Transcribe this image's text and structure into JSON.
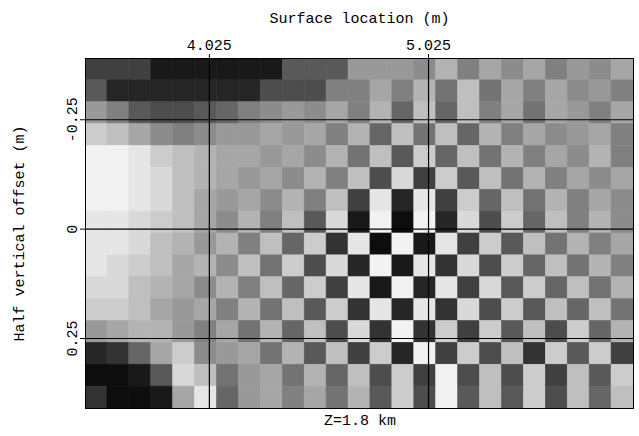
{
  "chart_data": {
    "type": "heatmap",
    "caption": "Z=1.8 km",
    "x_label": "Surface location (m)",
    "y_label": "Half vertical offset (m)",
    "xlim": [
      3.46,
      5.96
    ],
    "ylim": [
      -0.39,
      0.41
    ],
    "xticks": [
      4.025,
      5.025
    ],
    "yticks": [
      -0.25,
      0,
      0.25
    ],
    "grid": true,
    "zlim": [
      -1,
      1
    ],
    "x_bins": [
      3.46,
      3.56,
      3.66,
      3.76,
      3.86,
      3.96,
      4.06,
      4.16,
      4.26,
      4.36,
      4.46,
      4.56,
      4.66,
      4.76,
      4.86,
      4.96,
      5.06,
      5.16,
      5.26,
      5.36,
      5.46,
      5.56,
      5.66,
      5.76,
      5.86,
      5.96
    ],
    "y_bins": [
      -0.39,
      -0.34,
      -0.29,
      -0.24,
      -0.19,
      -0.14,
      -0.09,
      -0.04,
      0.01,
      0.06,
      0.11,
      0.16,
      0.21,
      0.26,
      0.31,
      0.36,
      0.41
    ],
    "cells": [
      [
        -0.5,
        -0.5,
        -0.5,
        -0.8,
        -0.8,
        -0.8,
        -0.8,
        -0.8,
        -0.8,
        -0.3,
        -0.3,
        -0.3,
        0.2,
        0.2,
        0.2,
        0.1,
        0.4,
        0.0,
        0.3,
        0.1,
        0.3,
        0.0,
        0.2,
        0.1,
        0.3
      ],
      [
        -0.3,
        -0.7,
        -0.7,
        -0.7,
        -0.7,
        -0.7,
        -0.7,
        -0.7,
        -0.4,
        -0.4,
        -0.4,
        0.0,
        0.0,
        0.3,
        0.0,
        0.4,
        -0.1,
        0.5,
        -0.1,
        0.3,
        0.0,
        0.3,
        0.1,
        0.2,
        0.0
      ],
      [
        0.2,
        0.0,
        -0.3,
        -0.4,
        -0.4,
        -0.3,
        -0.2,
        0.0,
        0.1,
        0.2,
        0.1,
        0.3,
        0.0,
        0.4,
        -0.2,
        0.5,
        -0.2,
        0.5,
        0.0,
        0.3,
        -0.1,
        0.3,
        0.2,
        0.0,
        0.3
      ],
      [
        0.6,
        0.5,
        0.3,
        0.1,
        0.0,
        0.1,
        0.2,
        0.2,
        0.3,
        0.2,
        0.3,
        0.0,
        0.4,
        -0.2,
        0.5,
        -0.1,
        0.5,
        -0.2,
        0.4,
        0.0,
        0.3,
        0.1,
        0.2,
        0.3,
        0.0
      ],
      [
        0.9,
        0.9,
        0.8,
        0.6,
        0.5,
        0.4,
        0.3,
        0.3,
        0.2,
        0.3,
        0.1,
        0.4,
        -0.1,
        0.5,
        -0.3,
        0.6,
        -0.2,
        0.5,
        -0.1,
        0.4,
        0.0,
        0.3,
        0.1,
        0.4,
        0.0
      ],
      [
        0.9,
        0.9,
        0.8,
        0.7,
        0.5,
        0.4,
        0.3,
        0.2,
        0.3,
        0.1,
        0.4,
        0.0,
        0.5,
        -0.4,
        0.7,
        -0.5,
        0.6,
        -0.3,
        0.5,
        -0.1,
        0.4,
        0.0,
        0.3,
        0.1,
        0.3
      ],
      [
        0.9,
        0.9,
        0.8,
        0.7,
        0.5,
        0.3,
        0.2,
        0.3,
        0.1,
        0.4,
        0.0,
        0.5,
        -0.5,
        0.8,
        -0.7,
        0.8,
        -0.5,
        0.6,
        -0.2,
        0.5,
        -0.1,
        0.4,
        0.0,
        0.3,
        0.1
      ],
      [
        0.8,
        0.8,
        0.7,
        0.6,
        0.5,
        0.3,
        0.1,
        0.4,
        0.0,
        0.5,
        -0.3,
        0.7,
        -0.8,
        0.9,
        -0.9,
        0.9,
        -0.7,
        0.7,
        -0.4,
        0.6,
        -0.2,
        0.5,
        0.0,
        0.4,
        0.1
      ],
      [
        0.8,
        0.8,
        0.7,
        0.5,
        0.4,
        0.2,
        0.4,
        0.0,
        0.5,
        -0.2,
        0.6,
        -0.6,
        0.8,
        -0.9,
        0.9,
        -0.8,
        0.8,
        -0.5,
        0.6,
        -0.3,
        0.5,
        -0.1,
        0.4,
        0.0,
        0.3
      ],
      [
        0.8,
        0.7,
        0.6,
        0.5,
        0.3,
        0.4,
        0.1,
        0.5,
        -0.1,
        0.6,
        -0.4,
        0.7,
        -0.7,
        0.9,
        -0.8,
        0.8,
        -0.6,
        0.7,
        -0.4,
        0.6,
        -0.2,
        0.5,
        -0.1,
        0.4,
        0.0
      ],
      [
        0.7,
        0.7,
        0.5,
        0.4,
        0.3,
        0.1,
        0.4,
        0.0,
        0.5,
        -0.2,
        0.6,
        -0.5,
        0.8,
        -0.8,
        0.9,
        -0.7,
        0.8,
        -0.5,
        0.7,
        -0.3,
        0.6,
        -0.2,
        0.5,
        -0.1,
        0.4
      ],
      [
        0.6,
        0.6,
        0.5,
        0.3,
        0.2,
        0.3,
        0.0,
        0.4,
        -0.1,
        0.5,
        -0.3,
        0.6,
        -0.6,
        0.8,
        -0.7,
        0.8,
        -0.6,
        0.7,
        -0.4,
        0.6,
        -0.3,
        0.5,
        -0.2,
        0.5,
        -0.1
      ],
      [
        0.2,
        0.3,
        0.4,
        0.4,
        0.2,
        0.0,
        0.3,
        -0.1,
        0.4,
        -0.2,
        0.5,
        -0.4,
        0.7,
        -0.6,
        0.9,
        -0.6,
        0.6,
        -0.5,
        0.6,
        -0.3,
        0.5,
        -0.4,
        0.6,
        -0.2,
        0.4
      ],
      [
        -0.7,
        -0.6,
        -0.2,
        0.3,
        0.6,
        0.1,
        0.2,
        0.3,
        -0.1,
        0.4,
        -0.3,
        0.5,
        -0.5,
        0.6,
        -0.7,
        0.9,
        -0.5,
        0.6,
        -0.4,
        0.5,
        -0.6,
        0.6,
        -0.3,
        0.6,
        -0.5
      ],
      [
        -0.9,
        -0.9,
        -0.8,
        -0.3,
        0.7,
        0.5,
        -0.1,
        0.2,
        0.3,
        -0.1,
        0.4,
        -0.2,
        0.5,
        -0.4,
        0.6,
        -0.5,
        0.9,
        -0.4,
        0.5,
        -0.4,
        0.6,
        -0.5,
        0.5,
        -0.3,
        0.6
      ],
      [
        -0.6,
        -0.9,
        -0.9,
        -0.8,
        0.3,
        0.8,
        -0.2,
        0.2,
        0.3,
        0.0,
        0.3,
        -0.1,
        0.4,
        -0.3,
        0.6,
        -0.4,
        0.9,
        -0.3,
        0.5,
        -0.3,
        0.6,
        -0.4,
        0.5,
        -0.2,
        0.5
      ]
    ]
  }
}
